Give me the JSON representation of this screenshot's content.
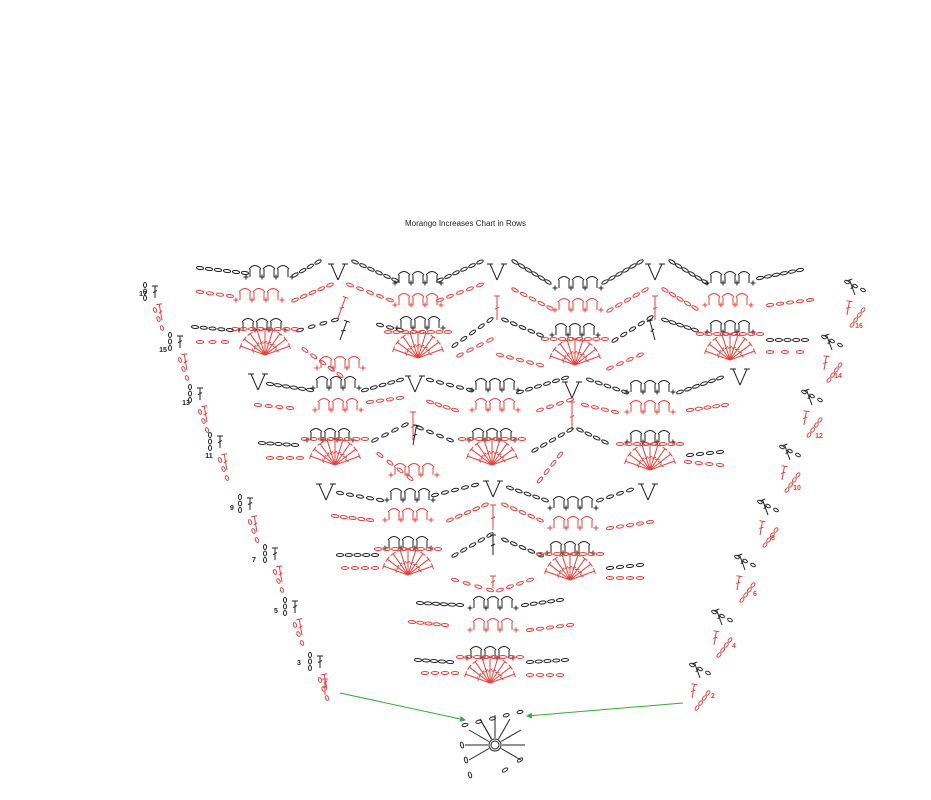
{
  "title": "Morango Increases Chart in Rows",
  "colors": {
    "odd_rows": "#222222",
    "even_rows": "#e8403a",
    "arrows": "#3aa83a",
    "background": "#ffffff"
  },
  "row_labels": {
    "left": [
      "17",
      "15",
      "13",
      "11",
      "9",
      "7",
      "5",
      "3"
    ],
    "right": [
      "16",
      "14",
      "12",
      "10",
      "8",
      "6",
      "4",
      "2"
    ]
  },
  "legend_symbols": [
    "chain-stitch",
    "single-crochet",
    "double-crochet",
    "v-stitch",
    "shell",
    "picot",
    "magic-ring"
  ]
}
